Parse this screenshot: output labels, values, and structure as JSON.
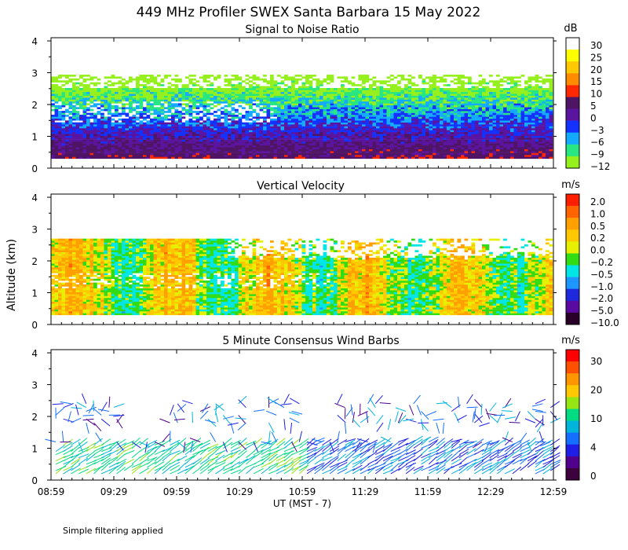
{
  "figure": {
    "title": "449 MHz Profiler SWEX Santa Barbara 15 May 2022",
    "xlabel": "UT   (MST - 7)",
    "ylabel": "Altitude (km)",
    "footnote": "Simple filtering applied"
  },
  "chart_data": [
    {
      "type": "heatmap",
      "title": "Signal to Noise Ratio",
      "x_ticks": [
        "08:59",
        "09:29",
        "09:59",
        "10:29",
        "10:59",
        "11:29",
        "11:59",
        "12:29",
        "12:59"
      ],
      "y_ticks": [
        "0",
        "1",
        "2",
        "3",
        "4"
      ],
      "ylim": [
        0,
        4.1
      ],
      "colorbar": {
        "unit": "dB",
        "labels": [
          "30",
          "25",
          "20",
          "15",
          "10",
          "5",
          "0",
          "−3",
          "−6",
          "−9",
          "−12"
        ],
        "colors": [
          "#ffffff",
          "#ffff00",
          "#ffc800",
          "#ff8c00",
          "#ff2800",
          "#501464",
          "#5a14a0",
          "#1432ff",
          "#14aaff",
          "#28e682",
          "#96f01e"
        ]
      },
      "profile": {
        "description": "SNR decreases with altitude: ~5–10 dB near 0.3–0.8 km, 0 to −6 dB at 1–2 km, −9 to −12 dB above ~2 km to 2.8 km; data mostly missing above 2.8 km"
      }
    },
    {
      "type": "heatmap",
      "title": "Vertical Velocity",
      "x_ticks": [
        "08:59",
        "09:29",
        "09:59",
        "10:29",
        "10:59",
        "11:29",
        "11:59",
        "12:29",
        "12:59"
      ],
      "y_ticks": [
        "0",
        "1",
        "2",
        "3",
        "4"
      ],
      "ylim": [
        0,
        4.1
      ],
      "colorbar": {
        "unit": "m/s",
        "labels": [
          "2.0",
          "1.0",
          "0.5",
          "0.2",
          "0.0",
          "−0.2",
          "−0.5",
          "−1.0",
          "−2.0",
          "−5.0",
          "−10.0"
        ],
        "colors": [
          "#ff1e00",
          "#ff6400",
          "#ffa000",
          "#ffc800",
          "#e6f000",
          "#32dc14",
          "#00e6e6",
          "#1e96ff",
          "#1e28dc",
          "#5a0aa0",
          "#280028"
        ]
      },
      "profile": {
        "description": "Mostly weak vertical motion (−0.5 to +0.5 m/s) from 0.3 to ~2.6 km; data mostly missing above 2.6 km"
      }
    },
    {
      "type": "scatter",
      "title": "5 Minute Consensus Wind Barbs",
      "x_ticks": [
        "08:59",
        "09:29",
        "09:59",
        "10:29",
        "10:59",
        "11:29",
        "11:59",
        "12:29",
        "12:59"
      ],
      "y_ticks": [
        "0",
        "1",
        "2",
        "3",
        "4"
      ],
      "ylim": [
        0,
        4.1
      ],
      "colorbar": {
        "unit": "m/s",
        "labels": [
          "30",
          "20",
          "10",
          "4",
          "0"
        ],
        "colors": [
          "#ff0000",
          "#ff5000",
          "#ff9600",
          "#ffc800",
          "#96e614",
          "#00dc82",
          "#00b4dc",
          "#146eff",
          "#1e1ee6",
          "#50008c",
          "#3c003c"
        ]
      },
      "profile": {
        "description": "Wind barbs mostly 0.2–1.2 km and 1.8–2.6 km; speeds ~4–15 m/s"
      }
    }
  ]
}
